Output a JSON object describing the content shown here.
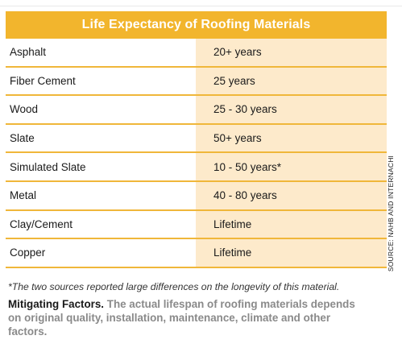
{
  "table": {
    "title": "Life Expectancy of Roofing Materials",
    "rows": [
      {
        "material": "Asphalt",
        "life": "20+ years"
      },
      {
        "material": "Fiber Cement",
        "life": "25 years"
      },
      {
        "material": "Wood",
        "life": "25 - 30 years"
      },
      {
        "material": "Slate",
        "life": "50+ years"
      },
      {
        "material": "Simulated Slate",
        "life": "10 - 50 years*"
      },
      {
        "material": "Metal",
        "life": "40 - 80 years"
      },
      {
        "material": "Clay/Cement",
        "life": "Lifetime"
      },
      {
        "material": "Copper",
        "life": "Lifetime"
      }
    ]
  },
  "source": "SOURCE: NAHB AND INTERNACHI",
  "footnote": "*The two sources reported large differences on the longevity of this material.",
  "mitigating": {
    "lead": "Mitigating Factors.",
    "body": " The actual lifespan of roofing materials depends on original quality, installation, maintenance, climate and other factors."
  },
  "colors": {
    "header": "#f2b52d",
    "value_column": "#fdeacb",
    "row_rule": "#f0b73a"
  }
}
